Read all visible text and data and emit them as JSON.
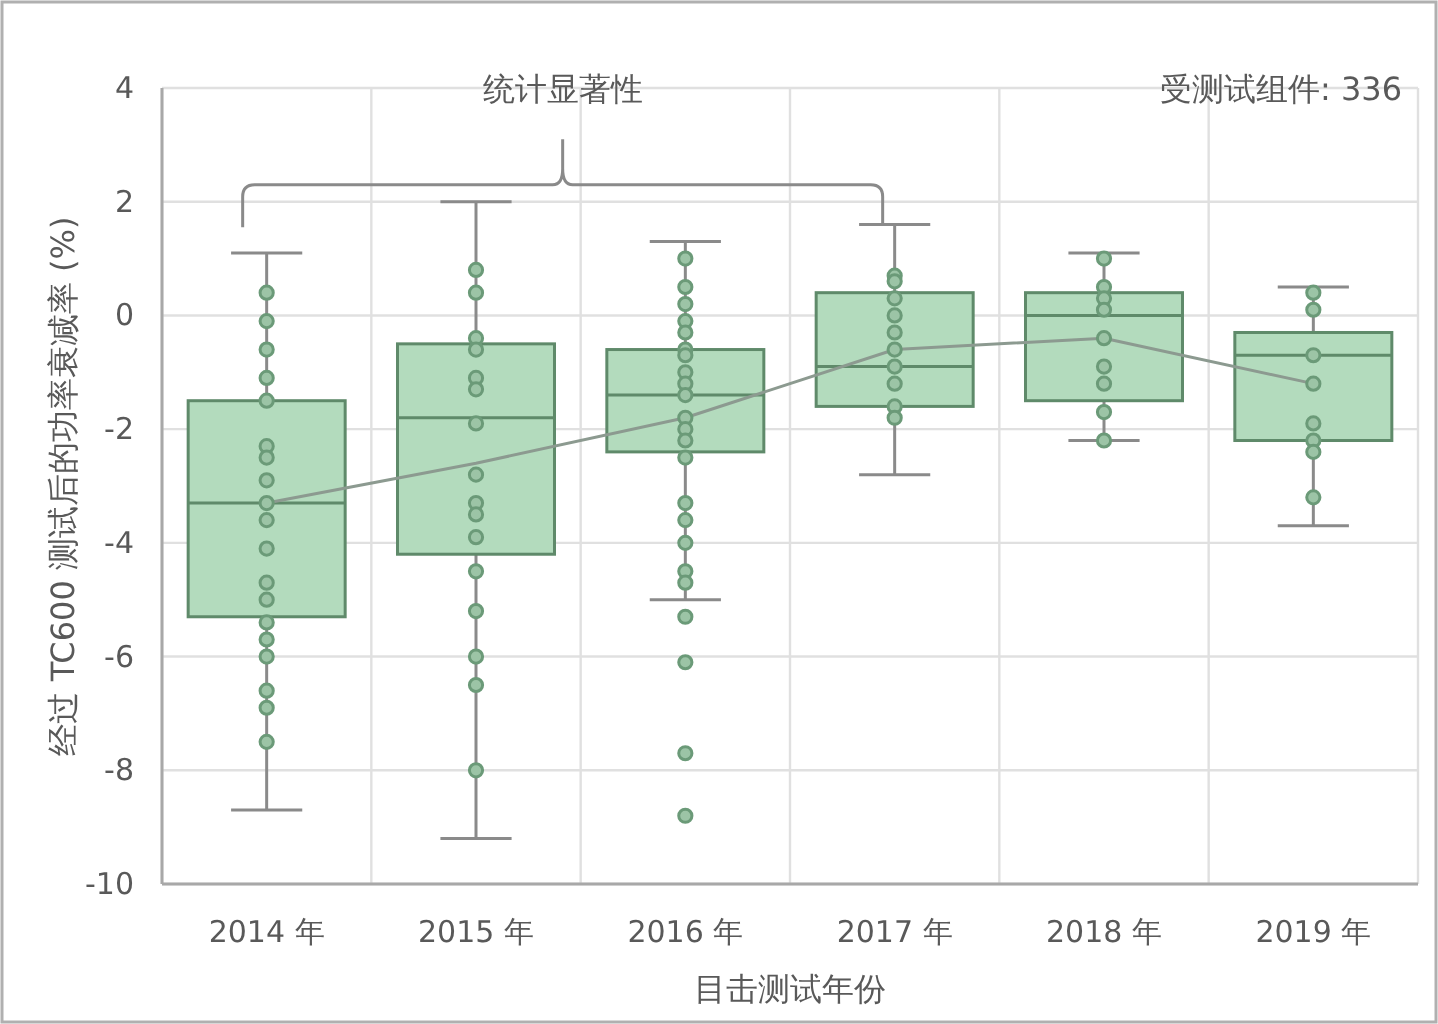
{
  "chart_data": {
    "type": "box",
    "xlabel": "目击测试年份",
    "ylabel": "经过 TC600 测试后的功率衰减率 (%)",
    "annotations": [
      "统计显著性",
      "受测试组件: 336"
    ],
    "categories": [
      "2014 年",
      "2015 年",
      "2016 年",
      "2017 年",
      "2018 年",
      "2019 年"
    ],
    "ylim": [
      -10,
      4
    ],
    "yticks": [
      -10,
      -8,
      -6,
      -4,
      -2,
      0,
      2,
      4
    ],
    "grid": true,
    "series": [
      {
        "type": "box",
        "color": "#b3dbbd",
        "boxes": [
          {
            "low": -8.7,
            "q1": -5.3,
            "median": -3.3,
            "q3": -1.5,
            "high": 1.1
          },
          {
            "low": -9.2,
            "q1": -4.2,
            "median": -1.8,
            "q3": -0.5,
            "high": 2.0
          },
          {
            "low": -5.0,
            "q1": -2.4,
            "median": -1.4,
            "q3": -0.6,
            "high": 1.3
          },
          {
            "low": -2.8,
            "q1": -1.6,
            "median": -0.9,
            "q3": 0.4,
            "high": 1.6
          },
          {
            "low": -2.2,
            "q1": -1.5,
            "median": 0.0,
            "q3": 0.4,
            "high": 1.1
          },
          {
            "low": -3.7,
            "q1": -2.2,
            "median": -0.7,
            "q3": -0.3,
            "high": 0.5
          }
        ]
      },
      {
        "type": "line",
        "color": "#8c9a90",
        "values": [
          -3.3,
          -2.6,
          -1.8,
          -0.6,
          -0.4,
          -1.2
        ]
      },
      {
        "type": "scatter",
        "color": "#6b9a78",
        "marker": "circle",
        "x": [
          "2014 年",
          "2014 年",
          "2014 年",
          "2014 年",
          "2014 年",
          "2014 年",
          "2014 年",
          "2014 年",
          "2014 年",
          "2014 年",
          "2014 年",
          "2014 年",
          "2014 年",
          "2014 年",
          "2014 年",
          "2014 年",
          "2014 年",
          "2014 年",
          "2014 年",
          "2015 年",
          "2015 年",
          "2015 年",
          "2015 年",
          "2015 年",
          "2015 年",
          "2015 年",
          "2015 年",
          "2015 年",
          "2015 年",
          "2015 年",
          "2015 年",
          "2015 年",
          "2015 年",
          "2015 年",
          "2015 年",
          "2016 年",
          "2016 年",
          "2016 年",
          "2016 年",
          "2016 年",
          "2016 年",
          "2016 年",
          "2016 年",
          "2016 年",
          "2016 年",
          "2016 年",
          "2016 年",
          "2016 年",
          "2016 年",
          "2016 年",
          "2016 年",
          "2016 年",
          "2016 年",
          "2016 年",
          "2016 年",
          "2016 年",
          "2016 年",
          "2016 年",
          "2017 年",
          "2017 年",
          "2017 年",
          "2017 年",
          "2017 年",
          "2017 年",
          "2017 年",
          "2017 年",
          "2017 年",
          "2017 年",
          "2018 年",
          "2018 年",
          "2018 年",
          "2018 年",
          "2018 年",
          "2018 年",
          "2018 年",
          "2018 年",
          "2018 年",
          "2019 年",
          "2019 年",
          "2019 年",
          "2019 年",
          "2019 年",
          "2019 年",
          "2019 年",
          "2019 年"
        ],
        "values": [
          0.4,
          -0.1,
          -0.6,
          -1.1,
          -1.5,
          -2.3,
          -2.5,
          -2.9,
          -3.3,
          -3.6,
          -4.1,
          -4.7,
          -5.0,
          -5.4,
          -5.7,
          -6.0,
          -6.6,
          -6.9,
          -7.5,
          0.8,
          0.4,
          -0.4,
          -0.6,
          -1.1,
          -1.3,
          -1.9,
          -2.8,
          -3.3,
          -3.5,
          -3.9,
          -4.5,
          -5.2,
          -6.0,
          -6.5,
          -8.0,
          1.0,
          0.5,
          0.2,
          -0.1,
          -0.3,
          -0.6,
          -0.7,
          -1.0,
          -1.2,
          -1.4,
          -1.8,
          -2.0,
          -2.2,
          -2.5,
          -3.3,
          -3.6,
          -4.0,
          -4.5,
          -4.7,
          -5.3,
          -6.1,
          -7.7,
          -8.8,
          0.7,
          0.6,
          0.3,
          0.0,
          -0.3,
          -0.6,
          -0.9,
          -1.2,
          -1.6,
          -1.8,
          1.0,
          0.5,
          0.3,
          0.1,
          -0.4,
          -0.9,
          -1.2,
          -1.7,
          -2.2,
          0.4,
          0.1,
          -0.7,
          -1.2,
          -1.9,
          -2.2,
          -2.4,
          -3.2
        ]
      }
    ]
  }
}
